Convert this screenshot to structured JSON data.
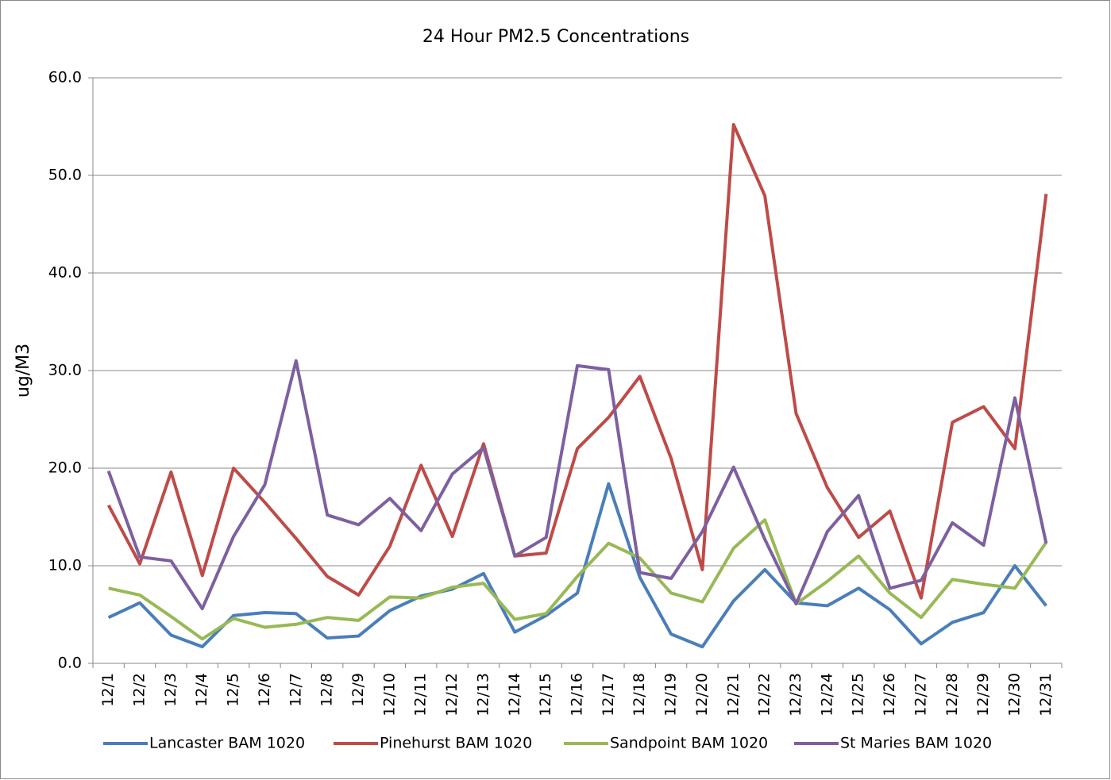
{
  "chart_data": {
    "type": "line",
    "title": "24 Hour PM2.5 Concentrations",
    "y_label": "ug/M3",
    "categories": [
      "12/1",
      "12/2",
      "12/3",
      "12/4",
      "12/5",
      "12/6",
      "12/7",
      "12/8",
      "12/9",
      "12/10",
      "12/11",
      "12/12",
      "12/13",
      "12/14",
      "12/15",
      "12/16",
      "12/17",
      "12/18",
      "12/19",
      "12/20",
      "12/21",
      "12/22",
      "12/23",
      "12/24",
      "12/25",
      "12/26",
      "12/27",
      "12/28",
      "12/29",
      "12/30",
      "12/31"
    ],
    "series": [
      {
        "name": "Lancaster BAM 1020",
        "color": "#4a7ebb",
        "values": [
          4.7,
          6.2,
          2.9,
          1.7,
          4.9,
          5.2,
          5.1,
          2.6,
          2.8,
          5.4,
          6.9,
          7.6,
          9.2,
          3.2,
          4.9,
          7.2,
          18.4,
          8.8,
          3.0,
          1.7,
          6.4,
          9.6,
          6.2,
          5.9,
          7.7,
          5.5,
          2.0,
          4.2,
          5.2,
          10.0,
          5.9
        ]
      },
      {
        "name": "Pinehurst BAM 1020",
        "color": "#be4b48",
        "values": [
          16.2,
          10.2,
          19.6,
          9.0,
          20.0,
          16.5,
          12.8,
          8.9,
          7.0,
          12.0,
          20.3,
          13.0,
          22.5,
          11.0,
          11.3,
          22.0,
          25.2,
          29.4,
          21.0,
          9.6,
          55.2,
          47.9,
          25.6,
          18.0,
          12.9,
          15.6,
          6.7,
          24.7,
          26.3,
          22.0,
          48.1
        ]
      },
      {
        "name": "Sandpoint BAM 1020",
        "color": "#98b954",
        "values": [
          7.7,
          7.0,
          4.8,
          2.5,
          4.6,
          3.7,
          4.0,
          4.7,
          4.4,
          6.8,
          6.7,
          7.8,
          8.2,
          4.5,
          5.1,
          8.9,
          12.3,
          10.8,
          7.2,
          6.3,
          11.8,
          14.7,
          6.1,
          8.4,
          11.0,
          7.2,
          4.7,
          8.6,
          8.1,
          7.7,
          12.4
        ]
      },
      {
        "name": "St Maries BAM 1020",
        "color": "#7d60a0",
        "values": [
          19.7,
          10.9,
          10.5,
          5.6,
          13.0,
          18.3,
          31.0,
          15.2,
          14.2,
          16.9,
          13.6,
          19.4,
          22.1,
          11.0,
          12.9,
          30.5,
          30.1,
          9.3,
          8.7,
          13.5,
          20.1,
          12.7,
          6.1,
          13.5,
          17.2,
          7.7,
          8.5,
          14.4,
          12.1,
          27.2,
          12.3
        ]
      }
    ],
    "ylim": [
      0,
      60
    ],
    "yticks": [
      {
        "value": 0,
        "label": "0.0"
      },
      {
        "value": 10,
        "label": "10.0"
      },
      {
        "value": 20,
        "label": "20.0"
      },
      {
        "value": 30,
        "label": "30.0"
      },
      {
        "value": 40,
        "label": "40.0"
      },
      {
        "value": 50,
        "label": "50.0"
      },
      {
        "value": 60,
        "label": "60.0"
      }
    ],
    "grid": true,
    "legend": "bottom"
  }
}
